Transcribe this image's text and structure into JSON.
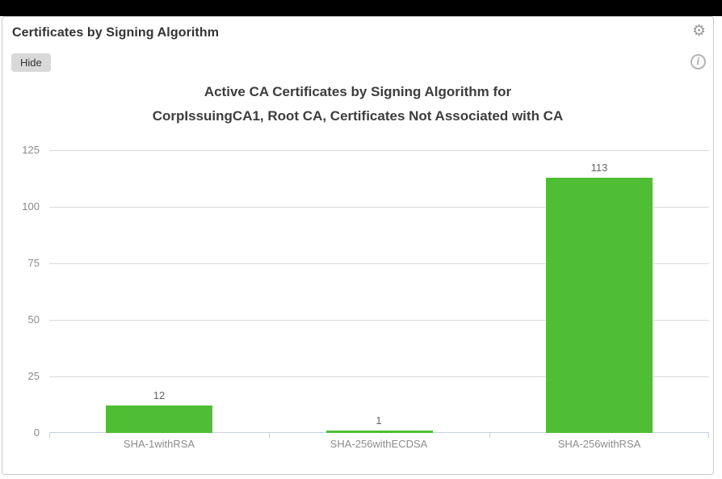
{
  "panel": {
    "title": "Certificates by Signing Algorithm",
    "hide_button_label": "Hide",
    "icons": {
      "settings_glyph": "⚙",
      "info_glyph": "i"
    }
  },
  "chart_data": {
    "type": "bar",
    "title_line1": "Active CA Certificates by Signing Algorithm for",
    "title_line2": "CorpIssuingCA1, Root CA, Certificates Not Associated with CA",
    "categories": [
      "SHA-1withRSA",
      "SHA-256withECDSA",
      "SHA-256withRSA"
    ],
    "values": [
      12,
      1,
      113
    ],
    "y_ticks": [
      0,
      25,
      50,
      75,
      100,
      125
    ],
    "ylim": [
      0,
      125
    ],
    "bar_color": "#4fbe35",
    "grid": true,
    "legend": "none"
  }
}
